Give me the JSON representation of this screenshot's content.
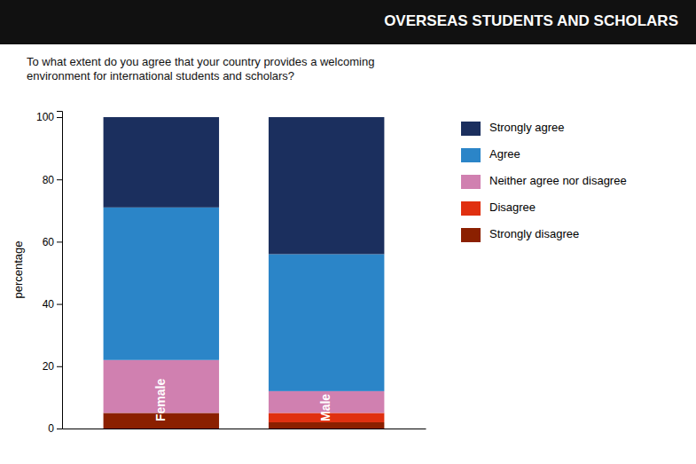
{
  "chart_data": {
    "type": "bar",
    "stacked": true,
    "title": "OVERSEAS STUDENTS AND SCHOLARS",
    "subtitle": "To what extent do you agree that your country provides a welcoming\nenvironment for international students and scholars?",
    "y_label": "percentage",
    "categories": [
      "Female",
      "Male"
    ],
    "series": [
      {
        "name": "Strongly disagree",
        "color": "#8B2000",
        "values": [
          5,
          2
        ]
      },
      {
        "name": "Disagree",
        "color": "#E03010",
        "values": [
          0,
          3
        ]
      },
      {
        "name": "Neither agree nor disagree",
        "color": "#D080B0",
        "values": [
          17,
          7
        ]
      },
      {
        "name": "Agree",
        "color": "#2B85C8",
        "values": [
          49,
          44
        ]
      },
      {
        "name": "Strongly agree",
        "color": "#1B2F5E",
        "values": [
          29,
          44
        ]
      }
    ],
    "ylim": [
      0,
      102
    ],
    "yticks": [
      0,
      20,
      40,
      60,
      80,
      100
    ],
    "grid": false,
    "legend": "right",
    "tick_labels": "y"
  }
}
